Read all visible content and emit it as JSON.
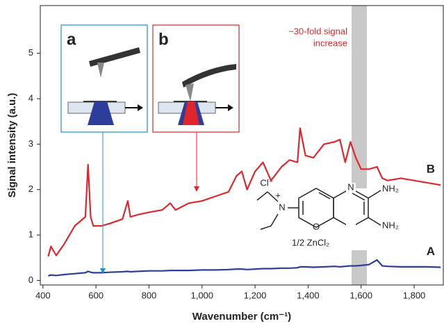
{
  "chart_data": {
    "type": "line",
    "xlabel": "Wavenumber (cm⁻¹)",
    "ylabel": "Signal intensity (a.u.)",
    "xlim": [
      390,
      1910
    ],
    "ylim": [
      -0.1,
      6.05
    ],
    "xticks": [
      400,
      600,
      800,
      {
        "value": 1000,
        "label": "1,000"
      },
      {
        "value": 1200,
        "label": "1,200"
      },
      {
        "value": 1400,
        "label": "1,400"
      },
      {
        "value": 1600,
        "label": "1,600"
      },
      {
        "value": 1800,
        "label": "1,800"
      }
    ],
    "yticks": [
      0,
      1,
      2,
      3,
      4,
      5
    ],
    "x": [
      420,
      430,
      450,
      480,
      500,
      520,
      540,
      560,
      570,
      580,
      590,
      620,
      650,
      700,
      720,
      730,
      760,
      800,
      850,
      880,
      900,
      950,
      1000,
      1050,
      1100,
      1130,
      1150,
      1170,
      1200,
      1230,
      1260,
      1300,
      1330,
      1360,
      1370,
      1390,
      1420,
      1460,
      1500,
      1520,
      1540,
      1560,
      1580,
      1600,
      1630,
      1660,
      1680,
      1700,
      1750,
      1800,
      1850,
      1900
    ],
    "series": [
      {
        "name": "B",
        "color": "#e0262b",
        "values": [
          0.53,
          0.75,
          0.55,
          0.8,
          1.0,
          1.2,
          1.3,
          1.4,
          2.55,
          1.4,
          1.2,
          1.2,
          1.25,
          1.35,
          1.75,
          1.4,
          1.45,
          1.5,
          1.55,
          1.7,
          1.55,
          1.7,
          1.75,
          1.85,
          1.95,
          2.3,
          2.4,
          2.0,
          2.4,
          2.6,
          2.2,
          2.5,
          2.65,
          2.6,
          3.35,
          2.75,
          2.7,
          3.0,
          3.05,
          3.1,
          2.6,
          3.05,
          2.7,
          2.45,
          2.45,
          2.5,
          2.25,
          2.2,
          2.25,
          2.2,
          2.15,
          2.1
        ]
      },
      {
        "name": "A",
        "color": "#2c3e9a",
        "values": [
          0.1,
          0.12,
          0.11,
          0.13,
          0.14,
          0.15,
          0.16,
          0.17,
          0.2,
          0.18,
          0.17,
          0.17,
          0.18,
          0.19,
          0.2,
          0.19,
          0.2,
          0.21,
          0.21,
          0.22,
          0.22,
          0.22,
          0.23,
          0.23,
          0.24,
          0.25,
          0.25,
          0.24,
          0.25,
          0.26,
          0.26,
          0.27,
          0.27,
          0.28,
          0.3,
          0.3,
          0.29,
          0.3,
          0.31,
          0.3,
          0.31,
          0.32,
          0.32,
          0.33,
          0.35,
          0.45,
          0.32,
          0.31,
          0.3,
          0.3,
          0.3,
          0.29
        ]
      }
    ],
    "annotations": {
      "inset_a": "a",
      "inset_b": "b",
      "signal_note": [
        "~30-fold signal",
        "increase"
      ],
      "molecule": {
        "anion": "Cl⁻",
        "charge": "+",
        "ring_n": "N",
        "ring_o": "O",
        "amine_n": "N",
        "nh2_top": "NH₂",
        "nh2_bottom": "NH₂",
        "salt": "1/2 ZnCl₂"
      }
    }
  }
}
